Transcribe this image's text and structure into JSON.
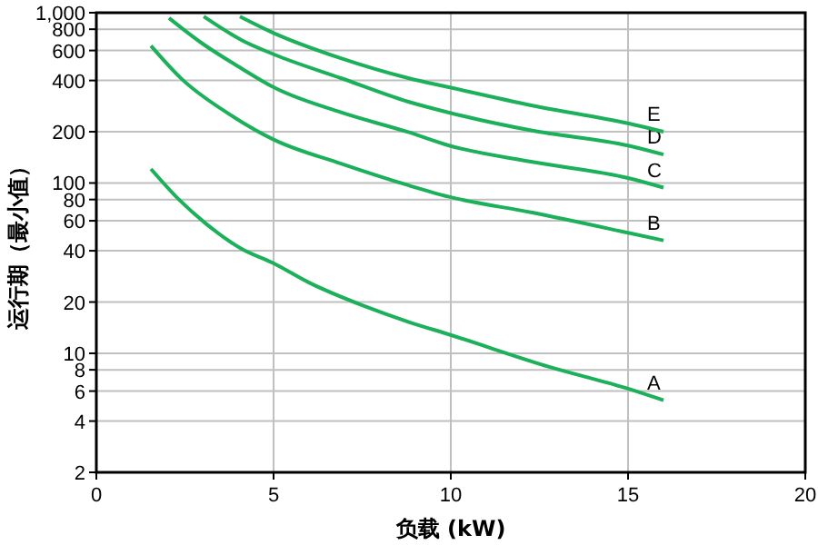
{
  "chart_data": {
    "type": "line",
    "xlabel": "负载 (kW)",
    "ylabel": "运行期（最小值）",
    "log": "y",
    "grid": true,
    "marker": "none",
    "line_style": "solid",
    "xlim": [
      0,
      20
    ],
    "xticks": [
      0,
      5,
      10,
      15,
      20
    ],
    "ylim": [
      2,
      1000
    ],
    "yticks": [
      2,
      4,
      6,
      8,
      10,
      20,
      40,
      60,
      80,
      100,
      200,
      400,
      600,
      800,
      {
        "value": 1000,
        "label": "1,000"
      }
    ],
    "series": [
      {
        "name": "A",
        "color": "#1db05a",
        "x": [
          1.54,
          2.33,
          3.08,
          4.1,
          4.97,
          6.0,
          7.54,
          8.8,
          9.95,
          12.8,
          15,
          16
        ],
        "values": [
          121,
          80,
          58,
          41,
          34,
          26,
          19,
          15.3,
          12.9,
          8.3,
          6.2,
          5.3
        ]
      },
      {
        "name": "B",
        "color": "#1db05a",
        "x": [
          1.54,
          2.4,
          3.8,
          5,
          6.9,
          8.8,
          9.95,
          12.3,
          15,
          16
        ],
        "values": [
          640,
          410,
          250,
          180,
          130,
          97,
          83,
          67,
          51,
          46
        ]
      },
      {
        "name": "C",
        "color": "#1db05a",
        "x": [
          2.05,
          2.92,
          4.1,
          5,
          6.9,
          8.8,
          9.95,
          12.3,
          15,
          16
        ],
        "values": [
          930,
          675,
          470,
          365,
          260,
          199,
          166,
          133,
          107,
          94
        ]
      },
      {
        "name": "D",
        "color": "#1db05a",
        "x": [
          3.03,
          4.1,
          5,
          6.9,
          8.8,
          9.95,
          12.3,
          15,
          16
        ],
        "values": [
          950,
          690,
          570,
          413,
          300,
          259,
          203,
          166,
          147
        ]
      },
      {
        "name": "E",
        "color": "#1db05a",
        "x": [
          4.05,
          5,
          6.9,
          8.8,
          9.95,
          12.3,
          15,
          16
        ],
        "values": [
          950,
          760,
          540,
          413,
          365,
          285,
          224,
          200
        ]
      }
    ]
  }
}
